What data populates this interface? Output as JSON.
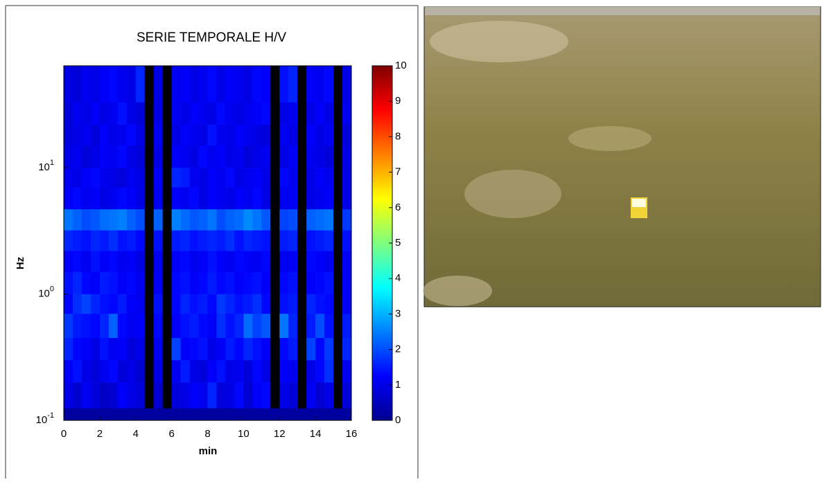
{
  "chart_data": {
    "type": "heatmap",
    "title": "SERIE TEMPORALE H/V",
    "xlabel": "min",
    "ylabel": "Hz",
    "xbins": [
      0,
      0.5,
      1,
      1.5,
      2,
      2.5,
      3,
      3.5,
      4,
      4.5,
      5,
      5.5,
      6,
      6.5,
      7,
      7.5,
      8,
      8.5,
      9,
      9.5,
      10,
      10.5,
      11,
      11.5,
      12,
      12.5,
      13,
      13.5,
      14,
      14.5,
      15,
      15.5,
      16
    ],
    "ybins": [
      0.1,
      0.125,
      0.2,
      0.3,
      0.45,
      0.7,
      1,
      1.5,
      2.2,
      3.2,
      4.7,
      7,
      10,
      15,
      22,
      33,
      64
    ],
    "z": [
      [
        0.3,
        0.3,
        0.3,
        0.3,
        0.3,
        0.3,
        0.3,
        0.3,
        0.3,
        0.3,
        0.3,
        0.3,
        0.3,
        0.3,
        0.3,
        0.3,
        0.3,
        0.3,
        0.3,
        0.3,
        0.3,
        0.3,
        0.3,
        0.3,
        0.3,
        0.3,
        0.3,
        0.3,
        0.3,
        0.3,
        0.3,
        0.3
      ],
      [
        1.0,
        0.8,
        1.1,
        0.9,
        0.7,
        0.8,
        1.2,
        1.0,
        0.9,
        null,
        0.8,
        null,
        0.9,
        1.0,
        1.2,
        1.1,
        1.6,
        0.9,
        1.0,
        1.3,
        0.8,
        1.2,
        1.3,
        null,
        1.0,
        0.9,
        null,
        1.1,
        0.8,
        1.0,
        null,
        0.9
      ],
      [
        1.2,
        1.4,
        1.0,
        0.9,
        1.1,
        1.3,
        0.9,
        1.0,
        0.8,
        null,
        1.0,
        null,
        1.1,
        1.5,
        1.0,
        0.9,
        1.2,
        1.4,
        1.0,
        1.1,
        0.9,
        1.3,
        1.0,
        null,
        1.2,
        1.1,
        null,
        1.0,
        1.3,
        1.7,
        null,
        1.1
      ],
      [
        1.6,
        1.3,
        1.2,
        1.0,
        1.4,
        1.1,
        1.2,
        0.9,
        1.0,
        null,
        1.1,
        null,
        1.9,
        1.2,
        1.3,
        1.4,
        1.0,
        1.2,
        1.5,
        1.3,
        1.6,
        1.4,
        1.2,
        null,
        1.3,
        1.5,
        null,
        1.9,
        1.3,
        1.8,
        null,
        1.6
      ],
      [
        1.8,
        1.5,
        1.4,
        1.3,
        1.6,
        2.2,
        1.3,
        1.1,
        1.2,
        null,
        1.3,
        null,
        1.2,
        1.4,
        1.5,
        1.3,
        1.2,
        1.7,
        1.4,
        1.6,
        2.3,
        1.9,
        2.1,
        null,
        2.4,
        1.6,
        null,
        1.5,
        2.0,
        1.4,
        null,
        1.5
      ],
      [
        1.3,
        1.7,
        1.9,
        1.6,
        1.4,
        1.3,
        1.5,
        1.2,
        1.1,
        null,
        1.4,
        null,
        1.3,
        1.6,
        1.4,
        1.5,
        1.3,
        1.8,
        1.6,
        1.4,
        1.5,
        1.7,
        1.3,
        null,
        1.4,
        1.5,
        null,
        1.6,
        1.4,
        1.3,
        null,
        1.2
      ],
      [
        1.4,
        1.6,
        1.3,
        1.2,
        1.5,
        1.4,
        1.2,
        1.3,
        1.1,
        null,
        1.2,
        null,
        1.3,
        1.4,
        1.2,
        1.3,
        1.5,
        1.3,
        1.4,
        1.2,
        1.3,
        1.4,
        1.2,
        null,
        1.3,
        1.4,
        null,
        1.2,
        1.3,
        1.4,
        null,
        1.2
      ],
      [
        1.2,
        1.3,
        1.1,
        1.4,
        1.2,
        1.3,
        1.1,
        1.2,
        1.0,
        null,
        1.1,
        null,
        1.2,
        1.3,
        1.1,
        1.2,
        1.4,
        1.2,
        1.1,
        1.3,
        1.2,
        1.1,
        1.3,
        null,
        1.1,
        1.2,
        null,
        1.3,
        1.2,
        1.1,
        null,
        1.2
      ],
      [
        1.6,
        1.5,
        1.4,
        1.6,
        1.5,
        1.7,
        1.4,
        1.5,
        1.3,
        null,
        1.4,
        null,
        1.5,
        1.6,
        1.4,
        1.5,
        1.6,
        1.5,
        1.7,
        1.4,
        1.6,
        1.5,
        1.4,
        null,
        1.5,
        1.6,
        null,
        1.4,
        1.5,
        1.6,
        null,
        1.4
      ],
      [
        2.4,
        2.2,
        2.0,
        2.1,
        2.3,
        2.4,
        2.5,
        2.2,
        2.0,
        null,
        2.2,
        null,
        2.5,
        2.3,
        2.1,
        2.2,
        2.4,
        2.0,
        2.2,
        2.3,
        2.6,
        2.4,
        2.1,
        null,
        1.9,
        2.0,
        null,
        2.2,
        2.3,
        2.4,
        null,
        1.8
      ],
      [
        1.2,
        1.3,
        1.1,
        1.2,
        1.0,
        1.1,
        1.3,
        1.2,
        1.0,
        null,
        1.1,
        null,
        1.2,
        1.1,
        1.3,
        1.0,
        1.2,
        1.1,
        1.0,
        1.2,
        1.1,
        1.3,
        1.0,
        null,
        1.1,
        1.2,
        null,
        1.0,
        1.1,
        1.2,
        null,
        1.0
      ],
      [
        1.1,
        1.0,
        1.2,
        1.3,
        1.1,
        1.0,
        0.9,
        1.1,
        1.0,
        null,
        1.2,
        null,
        1.6,
        1.5,
        1.1,
        1.0,
        1.2,
        1.1,
        1.3,
        1.0,
        1.1,
        1.2,
        1.0,
        null,
        1.3,
        1.1,
        null,
        1.0,
        1.2,
        1.1,
        null,
        1.0
      ],
      [
        1.0,
        1.1,
        0.9,
        1.0,
        1.2,
        1.1,
        1.3,
        1.0,
        0.9,
        null,
        1.0,
        null,
        1.2,
        1.1,
        1.0,
        1.3,
        1.1,
        1.2,
        1.0,
        1.1,
        0.9,
        1.0,
        1.1,
        null,
        1.0,
        1.2,
        null,
        1.1,
        1.0,
        0.9,
        null,
        1.0
      ],
      [
        0.9,
        1.0,
        1.1,
        0.9,
        1.2,
        1.0,
        1.1,
        1.3,
        1.0,
        null,
        1.1,
        null,
        1.0,
        1.2,
        1.1,
        1.0,
        1.4,
        1.1,
        1.0,
        1.2,
        1.1,
        1.0,
        0.9,
        null,
        1.1,
        1.0,
        null,
        1.2,
        1.0,
        1.1,
        null,
        0.9
      ],
      [
        0.9,
        1.1,
        1.0,
        1.2,
        1.0,
        1.1,
        1.4,
        1.0,
        0.9,
        null,
        1.0,
        null,
        1.1,
        1.0,
        1.2,
        1.1,
        1.0,
        1.3,
        1.1,
        1.0,
        1.1,
        1.2,
        1.3,
        null,
        1.0,
        1.1,
        null,
        1.0,
        1.2,
        1.0,
        null,
        1.1
      ],
      [
        1.0,
        0.9,
        1.1,
        1.0,
        1.2,
        1.3,
        1.1,
        1.0,
        1.6,
        null,
        1.0,
        null,
        1.1,
        1.2,
        1.0,
        1.1,
        1.3,
        1.0,
        1.2,
        1.1,
        1.0,
        1.3,
        1.2,
        null,
        1.4,
        1.6,
        null,
        1.2,
        1.1,
        1.3,
        null,
        1.0
      ]
    ],
    "null_color": "#000000",
    "colormap": "jet",
    "xlim": [
      0,
      16
    ],
    "xticks": [
      0,
      2,
      4,
      6,
      8,
      10,
      12,
      14,
      16
    ],
    "ylim": [
      0.1,
      64
    ],
    "yscale": "log",
    "yticks": [
      {
        "value": 0.1,
        "label": "10",
        "exponent": "-1"
      },
      {
        "value": 1,
        "label": "10",
        "exponent": "0"
      },
      {
        "value": 10,
        "label": "10",
        "exponent": "1"
      }
    ],
    "clim": [
      0,
      10
    ],
    "cticks": [
      0,
      1,
      2,
      3,
      4,
      5,
      6,
      7,
      8,
      9,
      10
    ]
  }
}
